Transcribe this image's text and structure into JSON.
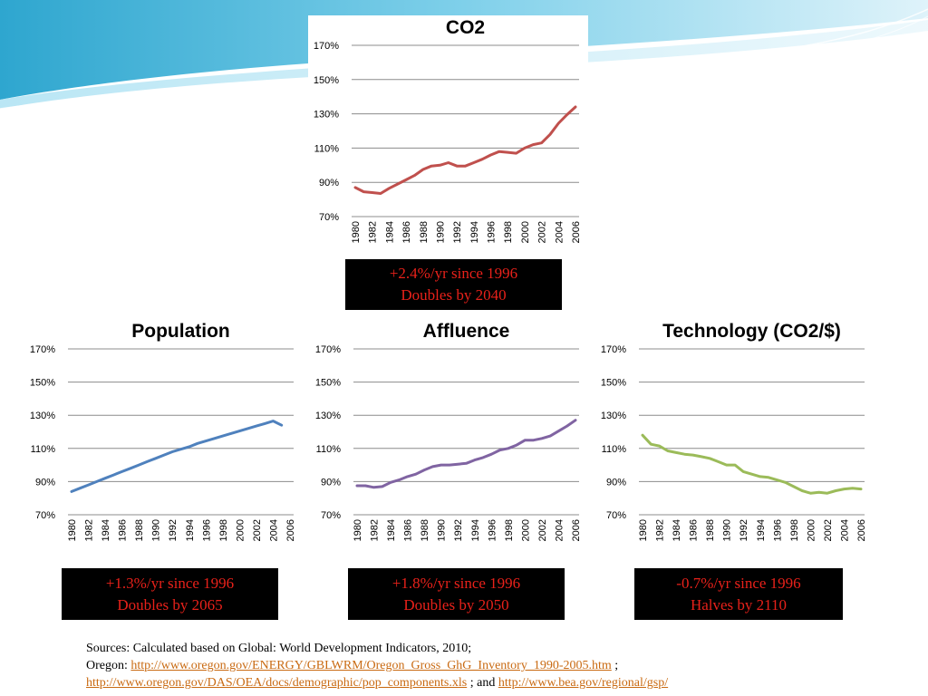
{
  "chart_data": [
    {
      "type": "line",
      "title": "CO2",
      "color": "#c0504d",
      "x": [
        1980,
        1981,
        1982,
        1983,
        1984,
        1985,
        1986,
        1987,
        1988,
        1989,
        1990,
        1991,
        1992,
        1993,
        1994,
        1995,
        1996,
        1997,
        1998,
        1999,
        2000,
        2001,
        2002,
        2003,
        2004,
        2005,
        2006
      ],
      "values": [
        87,
        84.5,
        84,
        83.5,
        86.5,
        89,
        91.5,
        94,
        97.5,
        99.5,
        100,
        101.5,
        99.5,
        99.5,
        101.5,
        103.5,
        106,
        108,
        107.5,
        107,
        110,
        112,
        113,
        118,
        124.5,
        129.5,
        134
      ],
      "ylim": [
        70,
        170
      ],
      "yticks": [
        "70%",
        "90%",
        "110%",
        "130%",
        "150%",
        "170%"
      ],
      "xticks": [
        "1980",
        "1982",
        "1984",
        "1986",
        "1988",
        "1990",
        "1992",
        "1994",
        "1996",
        "1998",
        "2000",
        "2002",
        "2004",
        "2006"
      ]
    },
    {
      "type": "line",
      "title": "Population",
      "color": "#4f81bd",
      "x": [
        1980,
        1981,
        1982,
        1983,
        1984,
        1985,
        1986,
        1987,
        1988,
        1989,
        1990,
        1991,
        1992,
        1993,
        1994,
        1995,
        1996,
        1997,
        1998,
        1999,
        2000,
        2001,
        2002,
        2003,
        2004,
        2005
      ],
      "values": [
        84,
        86,
        88,
        90,
        92,
        94,
        96,
        98,
        100,
        102,
        104,
        106,
        108,
        109.5,
        111,
        113,
        114.5,
        116,
        117.5,
        119,
        120.5,
        122,
        123.5,
        125,
        126.5,
        124
      ],
      "ylim": [
        70,
        170
      ],
      "yticks": [
        "70%",
        "90%",
        "110%",
        "130%",
        "150%",
        "170%"
      ],
      "xticks": [
        "1980",
        "1982",
        "1984",
        "1986",
        "1988",
        "1990",
        "1992",
        "1994",
        "1996",
        "1998",
        "2000",
        "2002",
        "2004",
        "2006"
      ]
    },
    {
      "type": "line",
      "title": "Affluence",
      "color": "#8064a2",
      "x": [
        1980,
        1981,
        1982,
        1983,
        1984,
        1985,
        1986,
        1987,
        1988,
        1989,
        1990,
        1991,
        1992,
        1993,
        1994,
        1995,
        1996,
        1997,
        1998,
        1999,
        2000,
        2001,
        2002,
        2003,
        2004,
        2005,
        2006
      ],
      "values": [
        87.5,
        87.5,
        86.5,
        87,
        89.5,
        91,
        93,
        94.5,
        97,
        99,
        100,
        100,
        100.5,
        101,
        103,
        104.5,
        106.5,
        109,
        110,
        112,
        115,
        115,
        116,
        117.5,
        120.5,
        123.5,
        127
      ],
      "ylim": [
        70,
        170
      ],
      "yticks": [
        "70%",
        "90%",
        "110%",
        "130%",
        "150%",
        "170%"
      ],
      "xticks": [
        "1980",
        "1982",
        "1984",
        "1986",
        "1988",
        "1990",
        "1992",
        "1994",
        "1996",
        "1998",
        "2000",
        "2002",
        "2004",
        "2006"
      ]
    },
    {
      "type": "line",
      "title": "Technology (CO2/$)",
      "color": "#9bbb59",
      "x": [
        1980,
        1981,
        1982,
        1983,
        1984,
        1985,
        1986,
        1987,
        1988,
        1989,
        1990,
        1991,
        1992,
        1993,
        1994,
        1995,
        1996,
        1997,
        1998,
        1999,
        2000,
        2001,
        2002,
        2003,
        2004,
        2005,
        2006
      ],
      "values": [
        118,
        112.5,
        111.5,
        108.5,
        107.5,
        106.5,
        106,
        105,
        104,
        102,
        100,
        100,
        96,
        94.5,
        93,
        92.5,
        91,
        89.5,
        87,
        84.5,
        83,
        83.5,
        83,
        84.5,
        85.5,
        86,
        85.5
      ],
      "ylim": [
        70,
        170
      ],
      "yticks": [
        "70%",
        "90%",
        "110%",
        "130%",
        "150%",
        "170%"
      ],
      "xticks": [
        "1980",
        "1982",
        "1984",
        "1986",
        "1988",
        "1990",
        "1992",
        "1994",
        "1996",
        "1998",
        "2000",
        "2002",
        "2004",
        "2006"
      ]
    }
  ],
  "callouts": {
    "co2": {
      "line1": "+2.4%/yr since 1996",
      "line2": "Doubles by 2040"
    },
    "population": {
      "line1": "+1.3%/yr since 1996",
      "line2": "Doubles by 2065"
    },
    "affluence": {
      "line1": "+1.8%/yr since 1996",
      "line2": "Doubles by 2050"
    },
    "technology": {
      "line1": "-0.7%/yr since 1996",
      "line2": "Halves by 2110"
    }
  },
  "sources": {
    "line1": "Sources: Calculated based on Global: World Development Indicators, 2010;",
    "oregon_label": "Oregon: ",
    "link1": "http://www.oregon.gov/ENERGY/GBLWRM/Oregon_Gross_GhG_Inventory_1990-2005.htm",
    "sep1": " ;",
    "link2": "http://www.oregon.gov/DAS/OEA/docs/demographic/pop_components.xls",
    "sep2": " ; and ",
    "link3": "http://www.bea.gov/regional/gsp/"
  },
  "colors": {
    "link": "#c96a12",
    "callout_text": "#e8211a",
    "callout_bg": "#000000"
  }
}
